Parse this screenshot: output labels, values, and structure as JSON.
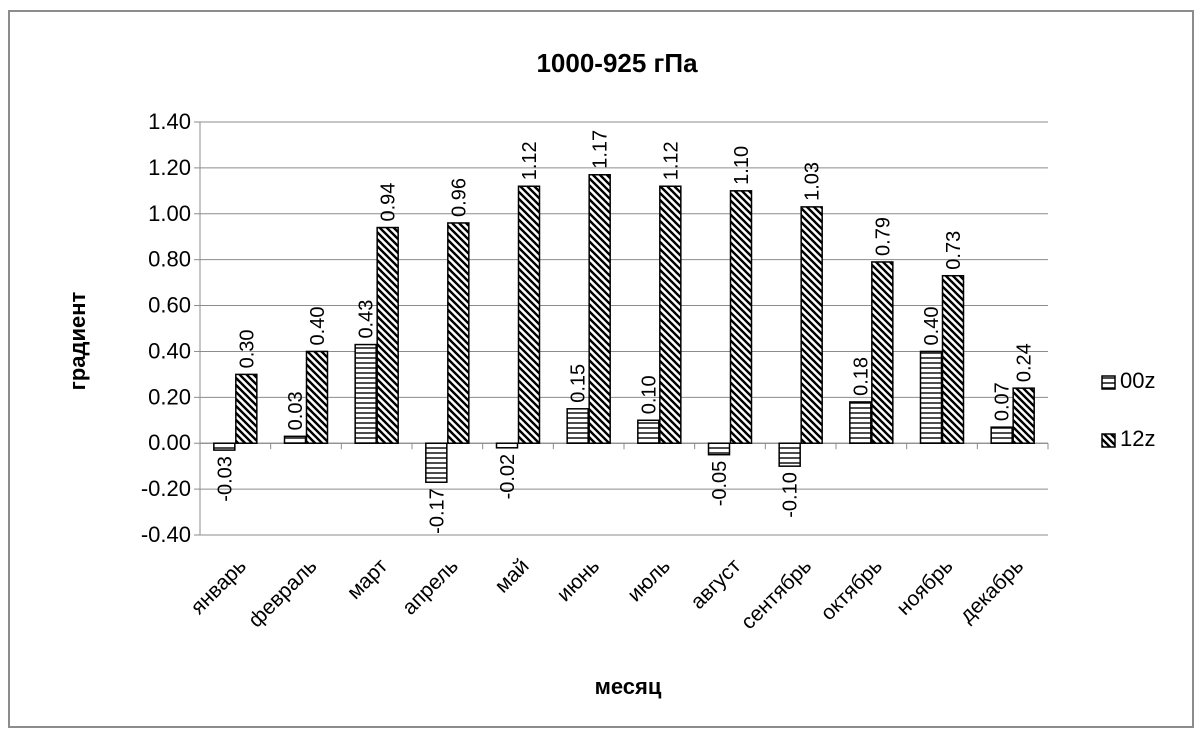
{
  "chart_data": {
    "type": "bar",
    "title": "1000-925 гПа",
    "xlabel": "месяц",
    "ylabel": "градиент",
    "ylim": [
      -0.4,
      1.4
    ],
    "ytick_step": 0.2,
    "yticks": [
      "-0.40",
      "-0.20",
      "0.00",
      "0.20",
      "0.40",
      "0.60",
      "0.80",
      "1.00",
      "1.20",
      "1.40"
    ],
    "categories": [
      "январь",
      "февраль",
      "март",
      "апрель",
      "май",
      "июнь",
      "июль",
      "август",
      "сентябрь",
      "октябрь",
      "ноябрь",
      "декабрь"
    ],
    "series": [
      {
        "name": "00z",
        "pattern": "horizontal-lines",
        "values": [
          -0.03,
          0.03,
          0.43,
          -0.17,
          -0.02,
          0.15,
          0.1,
          -0.05,
          -0.1,
          0.18,
          0.4,
          0.07
        ],
        "labels": [
          "-0.03",
          "0.03",
          "0.43",
          "-0.17",
          "-0.02",
          "0.15",
          "0.10",
          "-0.05",
          "-0.10",
          "0.18",
          "0.40",
          "0.07"
        ]
      },
      {
        "name": "12z",
        "pattern": "diagonal-lines",
        "values": [
          0.3,
          0.4,
          0.94,
          0.96,
          1.12,
          1.17,
          1.12,
          1.1,
          1.03,
          0.79,
          0.73,
          0.24
        ],
        "labels": [
          "0.30",
          "0.40",
          "0.94",
          "0.96",
          "1.12",
          "1.17",
          "1.12",
          "1.10",
          "1.03",
          "0.79",
          "0.73",
          "0.24"
        ]
      }
    ],
    "grid": true,
    "legend_position": "right",
    "colors": {
      "bar_stroke": "#000000",
      "grid": "#8c8c8c",
      "border": "#8c8c8c"
    }
  }
}
